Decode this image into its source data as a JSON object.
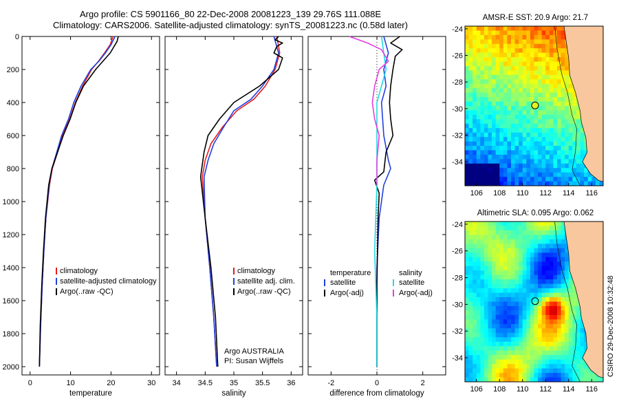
{
  "header": {
    "line1": "Argo profile: CS 5901166_80 22-Dec-2008 20081223_139 29.76S 111.088E",
    "line2": "Climatology: CARS2006. Satellite-adjusted climatology: synTS_20081223.nc (0.58d later)"
  },
  "stamp": "CSIRO 29-Dec-2008 10:32:48",
  "colors": {
    "climatology": "#e41a1c",
    "satellite": "#1f3fe0",
    "argo": "#000000",
    "sal_satellite": "#22d8e0",
    "sal_argo": "#e23ee0",
    "land": "#f8c79e"
  },
  "chart_data": [
    {
      "type": "line",
      "panel": "temperature",
      "xlabel": "temperature",
      "ylabel": "",
      "xlim": [
        -2,
        32
      ],
      "ylim": [
        2050,
        0
      ],
      "xticks": [
        0,
        10,
        20,
        30
      ],
      "yticks": [
        0,
        200,
        400,
        600,
        800,
        1000,
        1200,
        1400,
        1600,
        1800,
        2000
      ],
      "y_inverted": true,
      "legend": [
        "climatology",
        "satellite-adjusted climatology",
        "Argo(..raw -QC)"
      ],
      "series": [
        {
          "name": "climatology",
          "x": [
            20.5,
            19.8,
            18.4,
            16.9,
            15.2,
            13.0,
            11.2,
            9.8,
            8.0,
            6.8,
            5.5,
            4.8,
            3.9,
            3.4,
            3.0,
            2.6,
            2.3
          ],
          "y": [
            0,
            50,
            100,
            150,
            200,
            300,
            400,
            500,
            600,
            700,
            800,
            900,
            1100,
            1300,
            1500,
            1750,
            2000
          ]
        },
        {
          "name": "satellite-adjusted climatology",
          "x": [
            21.0,
            20.0,
            18.6,
            17.0,
            15.0,
            12.6,
            10.8,
            9.5,
            7.8,
            6.6,
            5.4,
            4.7,
            3.9,
            3.4,
            3.0,
            2.6,
            2.3
          ],
          "y": [
            0,
            50,
            100,
            150,
            200,
            300,
            400,
            500,
            600,
            700,
            800,
            900,
            1100,
            1300,
            1500,
            1750,
            2000
          ]
        },
        {
          "name": "Argo(..raw -QC)",
          "x": [
            21.8,
            21.5,
            19.8,
            18.0,
            16.2,
            13.2,
            11.3,
            9.9,
            8.2,
            6.8,
            5.4,
            4.6,
            3.8,
            3.3,
            2.9,
            2.5,
            2.3
          ],
          "y": [
            0,
            30,
            100,
            150,
            200,
            300,
            400,
            500,
            600,
            700,
            800,
            900,
            1100,
            1300,
            1500,
            1750,
            2000
          ]
        }
      ]
    },
    {
      "type": "line",
      "panel": "salinity",
      "xlabel": "salinity",
      "xlim": [
        33.8,
        36.2
      ],
      "ylim": [
        2050,
        0
      ],
      "xticks": [
        34,
        34.5,
        35,
        35.5,
        36
      ],
      "y_inverted": true,
      "legend": [
        "climatology",
        "satellite adj. clim.",
        "Argo(..raw -QC)"
      ],
      "annotation": [
        "Argo AUSTRALIA",
        "PI: Susan Wijffels"
      ],
      "series": [
        {
          "name": "climatology",
          "x": [
            35.75,
            35.8,
            35.72,
            35.55,
            35.35,
            35.05,
            34.8,
            34.6,
            34.5,
            34.45,
            34.5,
            34.58,
            34.65,
            34.7
          ],
          "y": [
            0,
            100,
            200,
            300,
            380,
            450,
            550,
            650,
            750,
            850,
            1100,
            1400,
            1700,
            2000
          ]
        },
        {
          "name": "satellite adj. clim.",
          "x": [
            35.7,
            35.78,
            35.7,
            35.5,
            35.3,
            35.0,
            34.82,
            34.65,
            34.55,
            34.48,
            34.5,
            34.58,
            34.65,
            34.7
          ],
          "y": [
            0,
            100,
            200,
            300,
            380,
            450,
            550,
            650,
            750,
            850,
            1100,
            1400,
            1700,
            2000
          ]
        },
        {
          "name": "Argo(..raw -QC)",
          "x": [
            35.78,
            35.72,
            35.85,
            35.75,
            35.7,
            35.85,
            35.78,
            35.45,
            35.0,
            34.75,
            34.55,
            34.48,
            34.42,
            34.5,
            34.6,
            34.68,
            34.72
          ],
          "y": [
            0,
            20,
            40,
            60,
            100,
            130,
            200,
            300,
            400,
            500,
            600,
            700,
            850,
            1100,
            1400,
            1700,
            2000
          ]
        }
      ]
    },
    {
      "type": "line",
      "panel": "difference",
      "xlabel": "difference from climatology",
      "xlim": [
        -3,
        3
      ],
      "ylim": [
        2050,
        0
      ],
      "xticks": [
        -2,
        0,
        2
      ],
      "y_inverted": true,
      "legend_left": {
        "heading": "temperature",
        "items": [
          "satellite",
          "Argo(-adj)"
        ]
      },
      "legend_right": {
        "heading": "salinity",
        "items": [
          "satellite",
          "Argo(-adj)"
        ]
      },
      "series": [
        {
          "name": "temperature satellite",
          "x": [
            0.3,
            0.5,
            0.3,
            0.4,
            0.2,
            0.3,
            0.5,
            0.6,
            0.3,
            0.1,
            0.0,
            0.0,
            0.0
          ],
          "y": [
            0,
            100,
            200,
            300,
            400,
            600,
            750,
            800,
            900,
            1100,
            1400,
            1700,
            2000
          ]
        },
        {
          "name": "temperature Argo(-adj)",
          "x": [
            1.0,
            0.6,
            1.1,
            0.8,
            0.7,
            0.6,
            0.55,
            0.6,
            0.7,
            0.4,
            0.3,
            -0.1,
            0.1,
            0.05,
            0.0,
            0.0
          ],
          "y": [
            0,
            40,
            80,
            120,
            200,
            300,
            400,
            500,
            600,
            700,
            820,
            870,
            950,
            1100,
            1500,
            2000
          ]
        },
        {
          "name": "salinity satellite",
          "x": [
            0.2,
            0.3,
            0.4,
            0.2,
            0.0,
            0.0,
            0.0,
            -0.1,
            0.0,
            0.0
          ],
          "y": [
            0,
            100,
            200,
            300,
            400,
            600,
            900,
            1300,
            1700,
            2000
          ]
        },
        {
          "name": "salinity Argo(-adj)",
          "x": [
            -1.2,
            -0.4,
            0.2,
            0.5,
            0.1,
            -0.1,
            -0.2,
            -0.1,
            0.1,
            0.0,
            0.0
          ],
          "y": [
            0,
            40,
            80,
            150,
            200,
            300,
            400,
            500,
            600,
            750,
            900
          ]
        }
      ]
    }
  ],
  "maps": [
    {
      "title": "AMSR-E SST: 20.9 Argo: 21.7",
      "lon_ticks": [
        106,
        108,
        110,
        112,
        114,
        116
      ],
      "lat_ticks": [
        -24,
        -26,
        -28,
        -30,
        -32,
        -34
      ],
      "lon_range": [
        105,
        117
      ],
      "lat_range": [
        -35.8,
        -23.8
      ],
      "argo_position": [
        111.088,
        -29.76
      ],
      "field": "sst"
    },
    {
      "title": "Altimetric SLA: 0.095 Argo: 0.062",
      "lon_ticks": [
        106,
        108,
        110,
        112,
        114,
        116
      ],
      "lat_ticks": [
        -24,
        -26,
        -28,
        -30,
        -32,
        -34
      ],
      "lon_range": [
        105,
        117
      ],
      "lat_range": [
        -35.8,
        -23.8
      ],
      "argo_position": [
        111.088,
        -29.76
      ],
      "field": "sla"
    }
  ]
}
